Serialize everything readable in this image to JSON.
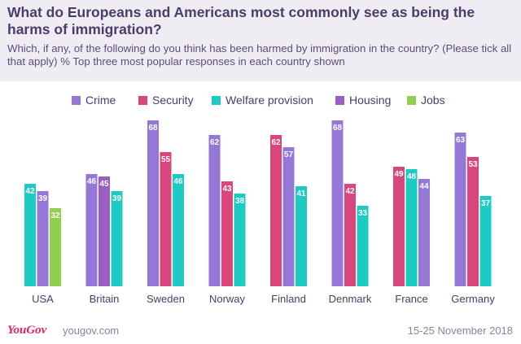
{
  "header": {
    "title": "What do Europeans and Americans most commonly see as being the harms of immigration?",
    "subtitle": "Which, if any, of the following do you think has been harmed by immigration in the country? (Please tick all that apply) % Top three most popular responses in each country shown"
  },
  "legend": [
    {
      "name": "Crime",
      "color": "#9577d8"
    },
    {
      "name": "Security",
      "color": "#d9467c"
    },
    {
      "name": "Welfare provision",
      "color": "#1ccbc4"
    },
    {
      "name": "Housing",
      "color": "#9b5fc4"
    },
    {
      "name": "Jobs",
      "color": "#8fd14f"
    }
  ],
  "footer": {
    "logo": "YouGov",
    "url": "yougov.com",
    "date": "15-25 November 2018"
  },
  "chart_data": {
    "type": "bar",
    "title": "What do Europeans and Americans most commonly see as being the harms of immigration?",
    "ylim": [
      0,
      70
    ],
    "grid": false,
    "legend_position": "top",
    "categories": [
      "USA",
      "Britain",
      "Sweden",
      "Norway",
      "Finland",
      "Denmark",
      "France",
      "Germany"
    ],
    "groups": [
      {
        "category": "USA",
        "bars": [
          {
            "series": "Welfare provision",
            "value": 42
          },
          {
            "series": "Crime",
            "value": 39
          },
          {
            "series": "Jobs",
            "value": 32
          }
        ]
      },
      {
        "category": "Britain",
        "bars": [
          {
            "series": "Crime",
            "value": 46
          },
          {
            "series": "Housing",
            "value": 45
          },
          {
            "series": "Welfare provision",
            "value": 39
          }
        ]
      },
      {
        "category": "Sweden",
        "bars": [
          {
            "series": "Crime",
            "value": 68
          },
          {
            "series": "Security",
            "value": 55
          },
          {
            "series": "Welfare provision",
            "value": 46
          }
        ]
      },
      {
        "category": "Norway",
        "bars": [
          {
            "series": "Crime",
            "value": 62
          },
          {
            "series": "Security",
            "value": 43
          },
          {
            "series": "Welfare provision",
            "value": 38
          }
        ]
      },
      {
        "category": "Finland",
        "bars": [
          {
            "series": "Security",
            "value": 62
          },
          {
            "series": "Crime",
            "value": 57
          },
          {
            "series": "Welfare provision",
            "value": 41
          }
        ]
      },
      {
        "category": "Denmark",
        "bars": [
          {
            "series": "Crime",
            "value": 68
          },
          {
            "series": "Security",
            "value": 42
          },
          {
            "series": "Welfare provision",
            "value": 33
          }
        ]
      },
      {
        "category": "France",
        "bars": [
          {
            "series": "Security",
            "value": 49
          },
          {
            "series": "Welfare provision",
            "value": 48
          },
          {
            "series": "Crime",
            "value": 44
          }
        ]
      },
      {
        "category": "Germany",
        "bars": [
          {
            "series": "Crime",
            "value": 63
          },
          {
            "series": "Security",
            "value": 53
          },
          {
            "series": "Welfare provision",
            "value": 37
          }
        ]
      }
    ]
  }
}
